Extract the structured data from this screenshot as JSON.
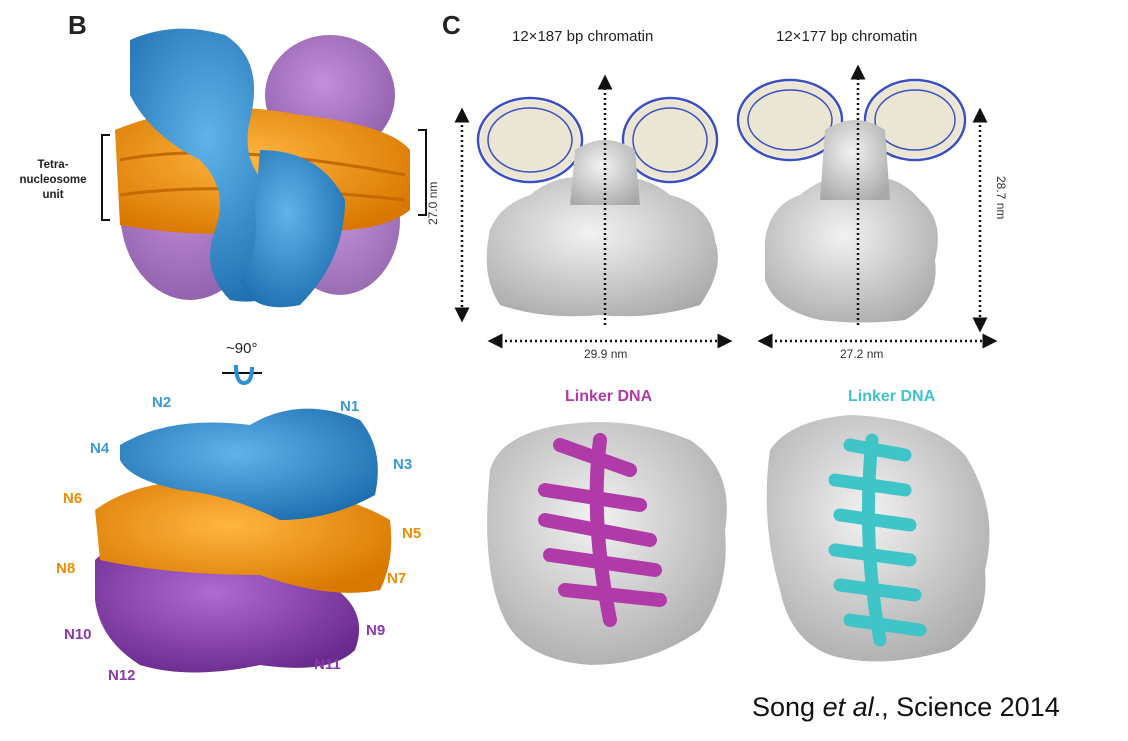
{
  "panel_b": {
    "letter": "B",
    "tetra_label_lines": [
      "Tetra-",
      "nucleosome",
      "unit"
    ],
    "rotation_label": "~90°",
    "nucleosomes": [
      "N1",
      "N2",
      "N3",
      "N4",
      "N5",
      "N6",
      "N7",
      "N8",
      "N9",
      "N10",
      "N11",
      "N12"
    ]
  },
  "panel_c": {
    "letter": "C",
    "left_title": "12×187 bp chromatin",
    "right_title": "12×177 bp chromatin",
    "left_height": "27.0 nm",
    "left_width": "29.9 nm",
    "right_height": "28.7 nm",
    "right_width": "27.2 nm",
    "left_linker": "Linker DNA",
    "right_linker": "Linker DNA"
  },
  "citation": {
    "authors_prefix": "Song ",
    "et_al": "et al",
    "suffix": "., Science 2014"
  },
  "colors": {
    "blue": "#2f8fd6",
    "orange": "#f39a12",
    "purple": "#8a3fb0",
    "magenta": "#b03aa8",
    "cyan": "#3fc4c8",
    "gray": "#c9c9c9"
  }
}
